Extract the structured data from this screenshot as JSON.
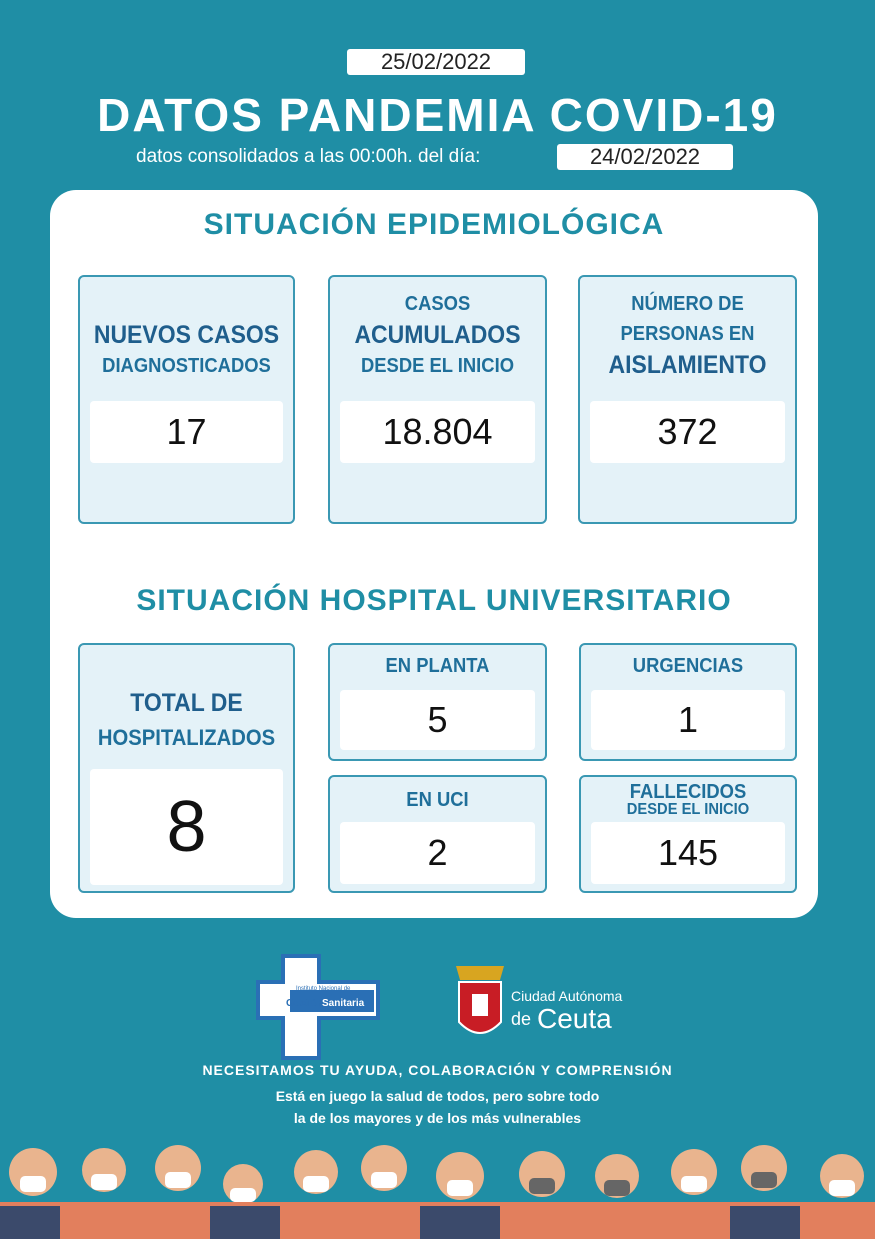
{
  "header": {
    "date": "25/02/2022",
    "title": "DATOS PANDEMIA COVID-19",
    "subtitle": "datos consolidados a las 00:00h. del día:",
    "consolidated_date": "24/02/2022"
  },
  "epidemiological": {
    "heading": "SITUACIÓN EPIDEMIOLÓGICA",
    "cards": [
      {
        "lines": [
          "NUEVOS CASOS",
          "DIAGNOSTICADOS"
        ],
        "value": "17"
      },
      {
        "lines": [
          "CASOS",
          "ACUMULADOS",
          "DESDE EL INICIO"
        ],
        "value": "18.804"
      },
      {
        "lines": [
          "NÚMERO DE",
          "PERSONAS EN",
          "AISLAMIENTO"
        ],
        "value": "372"
      }
    ]
  },
  "hospital": {
    "heading": "SITUACIÓN HOSPITAL UNIVERSITARIO",
    "cards": [
      {
        "lines": [
          "TOTAL DE",
          "HOSPITALIZADOS"
        ],
        "value": "8"
      },
      {
        "lines": [
          "EN PLANTA"
        ],
        "value": "5"
      },
      {
        "lines": [
          "URGENCIAS"
        ],
        "value": "1"
      },
      {
        "lines": [
          "EN UCI"
        ],
        "value": "2"
      },
      {
        "lines": [
          "FALLECIDOS",
          "DESDE EL INICIO"
        ],
        "value": "145"
      }
    ]
  },
  "logos": {
    "ingesa": [
      "Instituto Nacional de",
      "Gestión",
      "Sanitaria"
    ],
    "ceuta": [
      "Ciudad Autónoma",
      "de",
      "Ceuta"
    ]
  },
  "footer": {
    "slogan": "NECESITAMOS TU AYUDA, COLABORACIÓN  Y COMPRENSIÓN",
    "line1": "Está en juego la salud de todos, pero sobre todo",
    "line2": "la de los mayores y de los más vulnerables"
  }
}
